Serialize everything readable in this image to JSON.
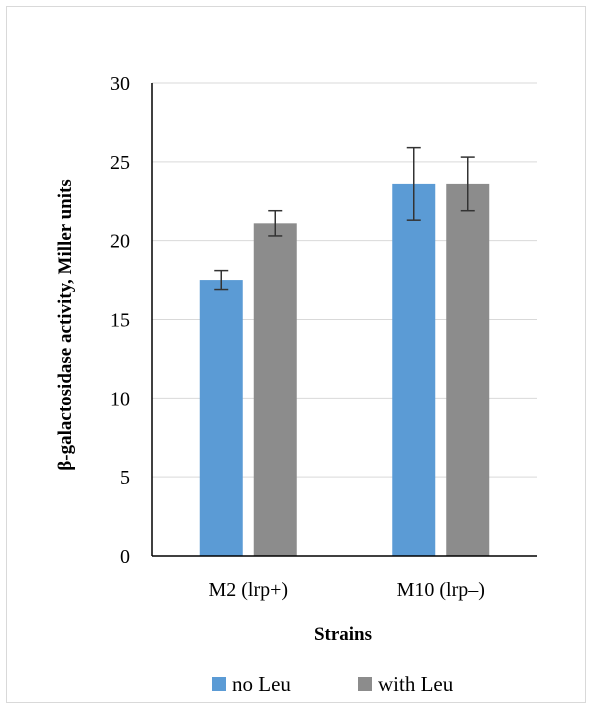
{
  "chart_data": {
    "type": "bar",
    "title": "",
    "xlabel": "Strains",
    "ylabel": "β-galactosidase activity, Miller units",
    "categories": [
      "M2 (lrp+)",
      "M10 (lrp–)"
    ],
    "series": [
      {
        "name": "no Leu",
        "color": "#5b9bd5",
        "values": [
          17.5,
          23.6
        ],
        "errors": [
          0.6,
          2.3
        ]
      },
      {
        "name": "with Leu",
        "color": "#8c8c8c",
        "values": [
          21.1,
          23.6
        ],
        "errors": [
          0.8,
          1.7
        ]
      }
    ],
    "ylim": [
      0,
      30
    ],
    "yticks": [
      0,
      5,
      10,
      15,
      20,
      25,
      30
    ],
    "grid": true,
    "legend_position": "bottom"
  }
}
